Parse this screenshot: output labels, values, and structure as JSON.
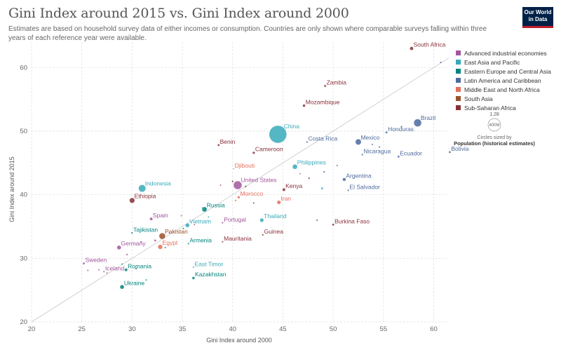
{
  "header": {
    "title": "Gini Index around 2015 vs. Gini Index around 2000",
    "subtitle": "Estimates are based on household survey data of either incomes or consumption. Countries are only shown where comparable surveys falling within three years of each reference year were available.",
    "logo_line1": "Our World",
    "logo_line2": "in Data"
  },
  "legend": {
    "items": [
      {
        "label": "Advanced industrial economies",
        "color": "#a2559c"
      },
      {
        "label": "East Asia and Pacific",
        "color": "#38aaba"
      },
      {
        "label": "Eastern Europe and Central Asia",
        "color": "#00847e"
      },
      {
        "label": "Latin America and Caribbean",
        "color": "#4c6a9c"
      },
      {
        "label": "Middle East and North Africa",
        "color": "#e56e5a"
      },
      {
        "label": "South Asia",
        "color": "#9a5129"
      },
      {
        "label": "Sub-Saharan Africa",
        "color": "#883039"
      }
    ]
  },
  "size_key": {
    "value_label": "1.28",
    "circle_label": "400M",
    "note": "Circles sized by",
    "measure": "Population (historical estimates)"
  },
  "chart_data": {
    "type": "scatter",
    "title": "Gini Index around 2015 vs. Gini Index around 2000",
    "xlabel": "Gini Index around 2000",
    "ylabel": "Gini Index around 2015",
    "xlim": [
      20,
      61.5
    ],
    "ylim": [
      20,
      64
    ],
    "xticks": [
      20,
      25,
      30,
      35,
      40,
      45,
      50,
      55,
      60
    ],
    "yticks": [
      20,
      30,
      40,
      50,
      60
    ],
    "grid": true,
    "reference_line": "y = x",
    "regions": {
      "Advanced industrial economies": "#a2559c",
      "East Asia and Pacific": "#38aaba",
      "Eastern Europe and Central Asia": "#00847e",
      "Latin America and Caribbean": "#4c6a9c",
      "Middle East and North Africa": "#e56e5a",
      "South Asia": "#9a5129",
      "Sub-Saharan Africa": "#883039"
    },
    "points": [
      {
        "label": "South Africa",
        "region": "Sub-Saharan Africa",
        "x": 57.8,
        "y": 63.0,
        "r": 2.6
      },
      {
        "label": "Zambia",
        "region": "Sub-Saharan Africa",
        "x": 49.2,
        "y": 57.1,
        "r": 1.6
      },
      {
        "label": "Mozambique",
        "region": "Sub-Saharan Africa",
        "x": 47.1,
        "y": 54.0,
        "r": 2.0
      },
      {
        "label": "Brazil",
        "region": "Latin America and Caribbean",
        "x": 58.4,
        "y": 51.3,
        "r": 5.5
      },
      {
        "label": "China",
        "region": "East Asia and Pacific",
        "x": 44.5,
        "y": 49.5,
        "r": 12.5
      },
      {
        "label": "Honduras",
        "region": "Latin America and Caribbean",
        "x": 55.3,
        "y": 49.8,
        "r": 1.6
      },
      {
        "label": "Mexico",
        "region": "Latin America and Caribbean",
        "x": 52.5,
        "y": 48.3,
        "r": 4.2
      },
      {
        "label": "Costa Rica",
        "region": "Latin America and Caribbean",
        "x": 47.4,
        "y": 48.3,
        "r": 1.3
      },
      {
        "label": "Benin",
        "region": "Sub-Saharan Africa",
        "x": 38.6,
        "y": 47.8,
        "r": 1.6
      },
      {
        "label": "Nicaragua",
        "region": "Latin America and Caribbean",
        "x": 52.9,
        "y": 46.3,
        "r": 1.3
      },
      {
        "label": "Ecuador",
        "region": "Latin America and Caribbean",
        "x": 56.5,
        "y": 46.0,
        "r": 1.6
      },
      {
        "label": "Bolivia",
        "region": "Latin America and Caribbean",
        "x": 61.6,
        "y": 46.7,
        "r": 1.6
      },
      {
        "label": "Cameroon",
        "region": "Sub-Saharan Africa",
        "x": 42.1,
        "y": 46.6,
        "r": 1.8
      },
      {
        "label": "Djibouti",
        "region": "Middle East and North Africa",
        "x": 40.1,
        "y": 44.1,
        "r": 1.0
      },
      {
        "label": "Philippines",
        "region": "East Asia and Pacific",
        "x": 46.2,
        "y": 44.4,
        "r": 3.5
      },
      {
        "label": "Argentina",
        "region": "Latin America and Caribbean",
        "x": 51.1,
        "y": 42.4,
        "r": 2.4
      },
      {
        "label": "United States",
        "region": "Advanced industrial economies",
        "x": 40.5,
        "y": 41.5,
        "r": 6.0
      },
      {
        "label": "Morocco",
        "region": "Middle East and North Africa",
        "x": 40.6,
        "y": 39.6,
        "r": 1.9
      },
      {
        "label": "Kenya",
        "region": "Sub-Saharan Africa",
        "x": 45.1,
        "y": 40.8,
        "r": 2.2
      },
      {
        "label": "El Salvador",
        "region": "Latin America and Caribbean",
        "x": 51.5,
        "y": 40.7,
        "r": 1.3
      },
      {
        "label": "Indonesia",
        "region": "East Asia and Pacific",
        "x": 31.0,
        "y": 41.0,
        "r": 5.2
      },
      {
        "label": "Ethiopia",
        "region": "Sub-Saharan Africa",
        "x": 30.0,
        "y": 39.1,
        "r": 3.8
      },
      {
        "label": "Iran",
        "region": "Middle East and North Africa",
        "x": 44.6,
        "y": 38.8,
        "r": 2.8
      },
      {
        "label": "Russia",
        "region": "Eastern Europe and Central Asia",
        "x": 37.2,
        "y": 37.7,
        "r": 3.6
      },
      {
        "label": "Spain",
        "region": "Advanced industrial economies",
        "x": 31.9,
        "y": 36.2,
        "r": 2.2
      },
      {
        "label": "Portugal",
        "region": "Advanced industrial economies",
        "x": 39.0,
        "y": 35.6,
        "r": 1.3
      },
      {
        "label": "Thailand",
        "region": "East Asia and Pacific",
        "x": 42.9,
        "y": 36.0,
        "r": 2.8
      },
      {
        "label": "Burkina Faso",
        "region": "Sub-Saharan Africa",
        "x": 50.0,
        "y": 35.3,
        "r": 1.6
      },
      {
        "label": "Vietnam",
        "region": "East Asia and Pacific",
        "x": 35.5,
        "y": 35.2,
        "r": 3.0
      },
      {
        "label": "Tajikistan",
        "region": "Eastern Europe and Central Asia",
        "x": 30.0,
        "y": 34.0,
        "r": 1.3
      },
      {
        "label": "Pakistan",
        "region": "South Asia",
        "x": 33.0,
        "y": 33.5,
        "r": 4.5
      },
      {
        "label": "Guinea",
        "region": "Sub-Saharan Africa",
        "x": 43.0,
        "y": 33.7,
        "r": 1.3
      },
      {
        "label": "Germany",
        "region": "Advanced industrial economies",
        "x": 28.7,
        "y": 31.7,
        "r": 3.0
      },
      {
        "label": "Egypt",
        "region": "Middle East and North Africa",
        "x": 32.8,
        "y": 31.8,
        "r": 3.4
      },
      {
        "label": "Armenia",
        "region": "Eastern Europe and Central Asia",
        "x": 35.6,
        "y": 32.3,
        "r": 1.2
      },
      {
        "label": "Mauritania",
        "region": "Sub-Saharan Africa",
        "x": 39.0,
        "y": 32.6,
        "r": 1.2
      },
      {
        "label": "Sweden",
        "region": "Advanced industrial economies",
        "x": 25.2,
        "y": 29.2,
        "r": 1.6
      },
      {
        "label": "Iceland",
        "region": "Advanced industrial economies",
        "x": 27.2,
        "y": 27.9,
        "r": 1.2
      },
      {
        "label": "Romania",
        "region": "Eastern Europe and Central Asia",
        "x": 29.4,
        "y": 28.2,
        "r": 2.2
      },
      {
        "label": "East Timor",
        "region": "East Asia and Pacific",
        "x": 36.1,
        "y": 28.6,
        "r": 1.2
      },
      {
        "label": "Kazakhstan",
        "region": "Eastern Europe and Central Asia",
        "x": 36.1,
        "y": 26.9,
        "r": 2.0
      },
      {
        "label": "Ukraine",
        "region": "Eastern Europe and Central Asia",
        "x": 29.0,
        "y": 25.5,
        "r": 3.0
      },
      {
        "label": "",
        "region": "Latin America and Caribbean",
        "x": 60.7,
        "y": 60.8,
        "r": 1.3
      },
      {
        "label": "",
        "region": "Latin America and Caribbean",
        "x": 56.8,
        "y": 50.7,
        "r": 1.3
      },
      {
        "label": "",
        "region": "Latin America and Caribbean",
        "x": 54.6,
        "y": 47.5,
        "r": 1.2
      },
      {
        "label": "",
        "region": "Latin America and Caribbean",
        "x": 53.9,
        "y": 47.9,
        "r": 1.2
      },
      {
        "label": "",
        "region": "Latin America and Caribbean",
        "x": 50.4,
        "y": 44.6,
        "r": 1.2
      },
      {
        "label": "",
        "region": "Latin America and Caribbean",
        "x": 49.1,
        "y": 43.6,
        "r": 1.3
      },
      {
        "label": "",
        "region": "East Asia and Pacific",
        "x": 48.9,
        "y": 41.0,
        "r": 1.6
      },
      {
        "label": "",
        "region": "Sub-Saharan Africa",
        "x": 47.6,
        "y": 42.6,
        "r": 1.3
      },
      {
        "label": "",
        "region": "Sub-Saharan Africa",
        "x": 46.7,
        "y": 43.3,
        "r": 1.0
      },
      {
        "label": "",
        "region": "Sub-Saharan Africa",
        "x": 48.4,
        "y": 36.0,
        "r": 1.2
      },
      {
        "label": "",
        "region": "Sub-Saharan Africa",
        "x": 42.1,
        "y": 38.7,
        "r": 1.2
      },
      {
        "label": "",
        "region": "Sub-Saharan Africa",
        "x": 41.3,
        "y": 41.3,
        "r": 1.3
      },
      {
        "label": "",
        "region": "Sub-Saharan Africa",
        "x": 40.0,
        "y": 42.1,
        "r": 1.3
      },
      {
        "label": "",
        "region": "Middle East and North Africa",
        "x": 40.3,
        "y": 39.1,
        "r": 1.3
      },
      {
        "label": "",
        "region": "Middle East and North Africa",
        "x": 34.9,
        "y": 36.7,
        "r": 1.3
      },
      {
        "label": "",
        "region": "Advanced industrial economies",
        "x": 38.8,
        "y": 41.5,
        "r": 1.2
      },
      {
        "label": "",
        "region": "Advanced industrial economies",
        "x": 36.2,
        "y": 35.3,
        "r": 1.2
      },
      {
        "label": "",
        "region": "Advanced industrial economies",
        "x": 33.7,
        "y": 34.0,
        "r": 1.2
      },
      {
        "label": "",
        "region": "Advanced industrial economies",
        "x": 32.3,
        "y": 32.8,
        "r": 1.6
      },
      {
        "label": "",
        "region": "Advanced industrial economies",
        "x": 30.9,
        "y": 32.6,
        "r": 1.3
      },
      {
        "label": "",
        "region": "Advanced industrial economies",
        "x": 29.5,
        "y": 30.6,
        "r": 1.3
      },
      {
        "label": "",
        "region": "Advanced industrial economies",
        "x": 25.6,
        "y": 28.1,
        "r": 1.2
      },
      {
        "label": "",
        "region": "Advanced industrial economies",
        "x": 26.7,
        "y": 28.2,
        "r": 1.2
      },
      {
        "label": "",
        "region": "Advanced industrial economies",
        "x": 27.5,
        "y": 27.7,
        "r": 1.2
      },
      {
        "label": "",
        "region": "Eastern Europe and Central Asia",
        "x": 30.4,
        "y": 28.4,
        "r": 1.3
      },
      {
        "label": "",
        "region": "Eastern Europe and Central Asia",
        "x": 31.4,
        "y": 26.6,
        "r": 1.2
      },
      {
        "label": "",
        "region": "Eastern Europe and Central Asia",
        "x": 29.0,
        "y": 29.1,
        "r": 1.2
      },
      {
        "label": "",
        "region": "Eastern Europe and Central Asia",
        "x": 37.0,
        "y": 37.9,
        "r": 1.2
      },
      {
        "label": "",
        "region": "Eastern Europe and Central Asia",
        "x": 33.3,
        "y": 31.7,
        "r": 1.2
      },
      {
        "label": "",
        "region": "Eastern Europe and Central Asia",
        "x": 35.1,
        "y": 34.7,
        "r": 1.2
      },
      {
        "label": "",
        "region": "East Asia and Pacific",
        "x": 37.6,
        "y": 36.5,
        "r": 1.2
      }
    ]
  }
}
